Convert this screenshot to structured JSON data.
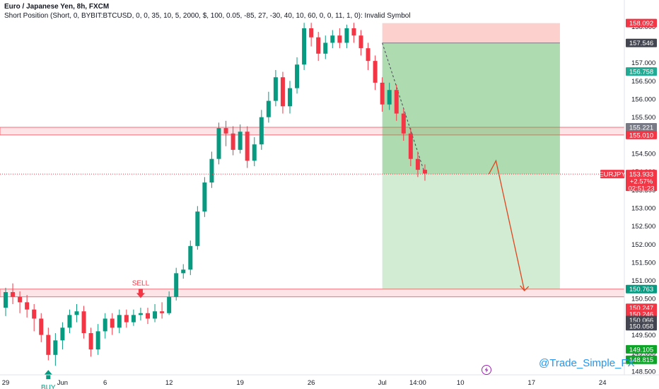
{
  "header": {
    "title": "Euro / Japanese Yen, 8h, FXCM",
    "subtitle": "Short Position (Short, 0, BYBIT:BTCUSD, 0, 0, 35, 10, 5, 2000, $, 100, 0.05, -85, 27, -30, 40, 10, 60, 0, 0, 11, 1, 0): Invalid Symbol"
  },
  "chart_data": {
    "type": "candlestick",
    "symbol": "EURJPY",
    "timeframe": "8h",
    "price_axis": {
      "ylim": [
        148.4,
        158.3
      ],
      "ticks": [
        "148.500",
        "149.000",
        "149.500",
        "150.000",
        "150.500",
        "151.000",
        "151.500",
        "152.000",
        "152.500",
        "153.000",
        "153.500",
        "154.000",
        "154.500",
        "155.000",
        "155.500",
        "156.000",
        "156.500",
        "157.000",
        "157.500",
        "158.000"
      ]
    },
    "time_axis": {
      "ticks": [
        {
          "label": "29",
          "bar": 0
        },
        {
          "label": "Jun",
          "bar": 8
        },
        {
          "label": "6",
          "bar": 14
        },
        {
          "label": "12",
          "bar": 23
        },
        {
          "label": "19",
          "bar": 33
        },
        {
          "label": "26",
          "bar": 43
        },
        {
          "label": "Jul",
          "bar": 53
        },
        {
          "label": "14:00",
          "bar": 58
        },
        {
          "label": "10",
          "bar": 64
        },
        {
          "label": "17",
          "bar": 74
        },
        {
          "label": "24",
          "bar": 84
        }
      ]
    },
    "candles": [
      [
        150.25,
        150.68,
        150.8,
        150.02
      ],
      [
        150.68,
        150.55,
        150.92,
        150.35
      ],
      [
        150.55,
        150.4,
        150.7,
        150.1
      ],
      [
        150.4,
        150.2,
        150.6,
        149.98
      ],
      [
        150.2,
        149.95,
        150.35,
        149.6
      ],
      [
        149.95,
        149.5,
        150.1,
        149.3
      ],
      [
        149.5,
        148.95,
        149.7,
        148.8
      ],
      [
        148.95,
        149.35,
        149.55,
        148.65
      ],
      [
        149.35,
        149.7,
        149.85,
        149.1
      ],
      [
        149.7,
        150.05,
        150.2,
        149.55
      ],
      [
        150.05,
        150.15,
        150.35,
        149.85
      ],
      [
        150.15,
        149.55,
        150.3,
        149.4
      ],
      [
        149.55,
        149.1,
        149.7,
        148.9
      ],
      [
        149.1,
        149.6,
        149.8,
        148.95
      ],
      [
        149.6,
        149.95,
        150.1,
        149.4
      ],
      [
        149.95,
        149.7,
        150.1,
        149.5
      ],
      [
        149.7,
        150.05,
        150.2,
        149.55
      ],
      [
        150.05,
        149.85,
        150.2,
        149.7
      ],
      [
        149.85,
        150.05,
        150.2,
        149.75
      ],
      [
        150.05,
        150.1,
        150.25,
        149.9
      ],
      [
        150.1,
        149.95,
        150.25,
        149.8
      ],
      [
        149.95,
        150.15,
        150.35,
        149.85
      ],
      [
        150.15,
        150.1,
        150.4,
        149.95
      ],
      [
        150.1,
        150.55,
        150.7,
        150.05
      ],
      [
        150.55,
        151.2,
        151.35,
        150.45
      ],
      [
        151.2,
        151.3,
        151.45,
        151.05
      ],
      [
        151.3,
        151.95,
        152.1,
        151.15
      ],
      [
        151.95,
        152.9,
        153.05,
        151.85
      ],
      [
        152.9,
        153.7,
        153.85,
        152.75
      ],
      [
        153.7,
        154.35,
        154.55,
        153.55
      ],
      [
        154.35,
        155.2,
        155.35,
        154.2
      ],
      [
        155.2,
        155.05,
        155.4,
        154.7
      ],
      [
        155.05,
        154.6,
        155.25,
        154.45
      ],
      [
        154.6,
        155.1,
        155.3,
        154.5
      ],
      [
        155.1,
        154.3,
        155.25,
        154.1
      ],
      [
        154.3,
        154.75,
        154.95,
        154.15
      ],
      [
        154.75,
        155.5,
        155.7,
        154.6
      ],
      [
        155.5,
        155.95,
        156.2,
        155.35
      ],
      [
        155.95,
        156.6,
        156.8,
        155.8
      ],
      [
        156.6,
        155.8,
        156.75,
        155.6
      ],
      [
        155.8,
        156.3,
        156.5,
        155.6
      ],
      [
        156.3,
        156.95,
        157.15,
        156.15
      ],
      [
        156.95,
        157.95,
        158.1,
        156.8
      ],
      [
        157.95,
        157.7,
        158.1,
        157.45
      ],
      [
        157.7,
        157.25,
        157.85,
        157.05
      ],
      [
        157.25,
        157.55,
        157.75,
        157.1
      ],
      [
        157.55,
        157.75,
        157.9,
        157.4
      ],
      [
        157.75,
        157.55,
        157.95,
        157.4
      ],
      [
        157.55,
        157.95,
        158.05,
        157.4
      ],
      [
        157.95,
        157.75,
        158.1,
        157.55
      ],
      [
        157.75,
        157.4,
        157.9,
        157.2
      ],
      [
        157.4,
        157.05,
        157.55,
        156.8
      ],
      [
        157.05,
        156.45,
        157.2,
        156.25
      ],
      [
        156.45,
        155.85,
        156.6,
        155.65
      ],
      [
        155.85,
        156.25,
        156.45,
        155.7
      ],
      [
        156.25,
        155.6,
        156.4,
        155.4
      ],
      [
        155.6,
        155.05,
        155.75,
        154.85
      ],
      [
        155.05,
        154.35,
        155.2,
        154.15
      ],
      [
        154.35,
        154.05,
        154.55,
        153.85
      ],
      [
        154.05,
        153.95,
        154.2,
        153.75
      ]
    ],
    "levels": [
      {
        "name": "resistance-zone",
        "y": [
          155.01,
          155.221
        ],
        "color": "#f23645"
      },
      {
        "name": "support-zone",
        "y": [
          150.55,
          150.763
        ],
        "color": "#f23645"
      }
    ],
    "short_position": {
      "entry": 157.546,
      "stop": 158.092,
      "target": 150.763,
      "start_bar": 53,
      "end_bar": 78,
      "current_price": 153.933
    },
    "markers": [
      {
        "label": "BUY",
        "bar": 6,
        "price": 148.65,
        "side": "below",
        "color": "#089981"
      },
      {
        "label": "SELL",
        "bar": 19,
        "price": 150.4,
        "side": "above",
        "color": "#f23645"
      }
    ],
    "projection": [
      {
        "bar": 68,
        "price": 153.933
      },
      {
        "bar": 69,
        "price": 154.3
      },
      {
        "bar": 73,
        "price": 150.72
      }
    ],
    "price_labels": [
      {
        "text": "158.092",
        "price": 158.092,
        "bg": "#f23645"
      },
      {
        "text": "157.546",
        "price": 157.546,
        "bg": "#434651"
      },
      {
        "text": "156.758",
        "price": 156.758,
        "bg": "#22ab94"
      },
      {
        "text": "155.221",
        "price": 155.221,
        "bg": "#787b86"
      },
      {
        "text": "155.010",
        "price": 155.01,
        "bg": "#f23645"
      },
      {
        "text": "150.763",
        "price": 150.763,
        "bg": "#089981"
      },
      {
        "text": "150.247",
        "price": 150.247,
        "bg": "#f23645"
      },
      {
        "text": "150.246",
        "price": 150.08,
        "bg": "#f23645"
      },
      {
        "text": "150.066",
        "price": 149.91,
        "bg": "#434651"
      },
      {
        "text": "150.058",
        "price": 149.74,
        "bg": "#434651"
      },
      {
        "text": "149.105",
        "price": 149.105,
        "bg": "#0fa32a"
      },
      {
        "text": "148.815",
        "price": 148.815,
        "bg": "#0fa32a"
      }
    ],
    "current_badge": {
      "symbol": "EURJPY",
      "price": "153.933",
      "change": "+2.57%",
      "countdown": "02:51:23",
      "bg": "#f23645"
    },
    "colors": {
      "up": "#089981",
      "down": "#f23645",
      "profit": "#4caf50",
      "loss": "#f44336",
      "projection": "#e0451f"
    }
  },
  "watermark": "@Trade_Simple_FX"
}
